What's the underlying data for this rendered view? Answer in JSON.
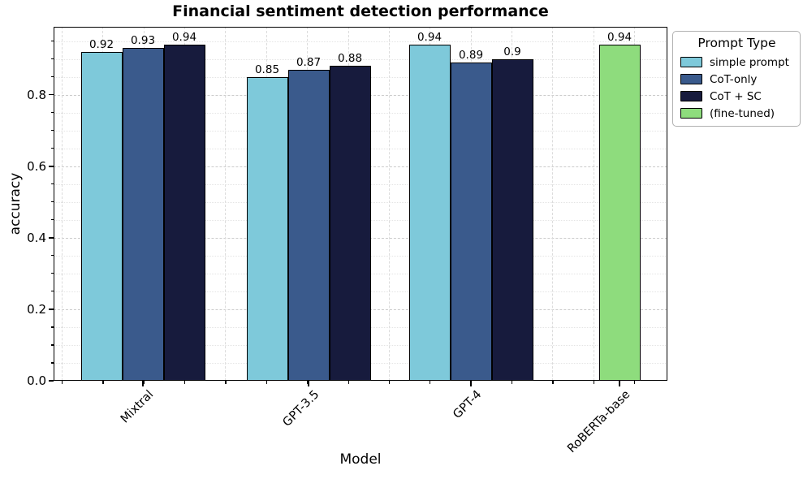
{
  "chart_data": {
    "type": "bar",
    "title": "Financial sentiment detection performance",
    "xlabel": "Model",
    "ylabel": "accuracy",
    "ylim": [
      0,
      0.99
    ],
    "yticks": [
      0.0,
      0.2,
      0.4,
      0.6,
      0.8
    ],
    "grid": true,
    "categories": [
      "Mixtral",
      "GPT-3.5",
      "GPT-4",
      "RoBERTa-base"
    ],
    "series": [
      {
        "name": "simple prompt",
        "color": "#7ec9da",
        "values": [
          0.92,
          0.85,
          0.94,
          null
        ]
      },
      {
        "name": "CoT-only",
        "color": "#3a5a8c",
        "values": [
          0.93,
          0.87,
          0.89,
          null
        ]
      },
      {
        "name": "CoT + SC",
        "color": "#171b3d",
        "values": [
          0.94,
          0.88,
          0.9,
          null
        ]
      },
      {
        "name": "(fine-tuned)",
        "color": "#8edc7d",
        "values": [
          null,
          null,
          null,
          0.94
        ]
      }
    ],
    "legend": {
      "title": "Prompt Type",
      "position": "upper-right-outside"
    }
  }
}
